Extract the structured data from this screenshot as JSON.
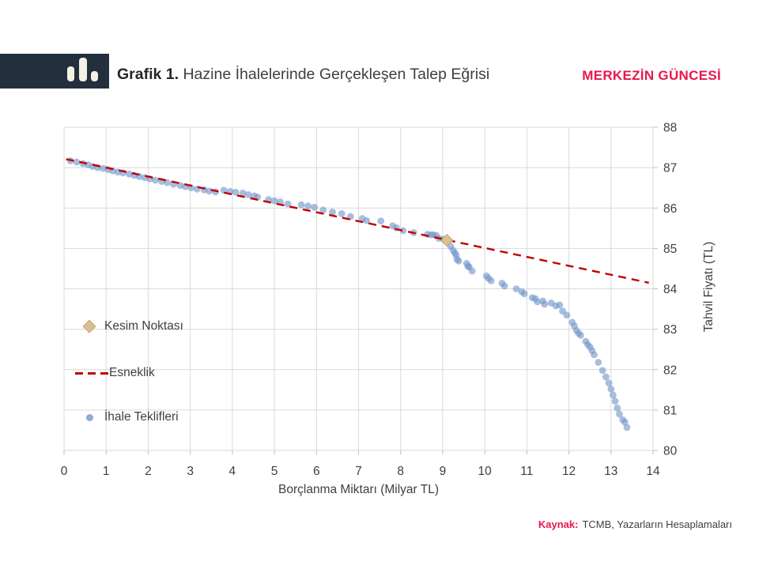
{
  "header": {
    "title_prefix": "Grafik 1.",
    "title_rest": " Hazine İhalelerinde Gerçekleşen Talep Eğrisi",
    "brand": "MERKEZİN GÜNCESİ",
    "logo_icon": "bar-chart-icon"
  },
  "footer": {
    "source_label": "Kaynak:",
    "source_text": "TCMB, Yazarların Hesaplamaları"
  },
  "colors": {
    "navy": "#232F3D",
    "cream": "#F5F0E4",
    "crimson": "#E8174B",
    "scatter_blue": "#7396CC",
    "trend_red": "#C00000",
    "diamond_tan": "#D9BF92",
    "diamond_border": "#C3A878",
    "grid": "#D9D9D9",
    "tick": "#BFBFBF",
    "text": "#404040"
  },
  "chart_data": {
    "type": "scatter",
    "title": "Hazine İhalelerinde Gerçekleşen Talep Eğrisi",
    "xlabel": "Borçlanma Miktarı (Milyar TL)",
    "ylabel": "Tahvil Fiyatı (TL)",
    "xlim": [
      0,
      14
    ],
    "ylim": [
      80,
      88
    ],
    "x_ticks": [
      0,
      1,
      2,
      3,
      4,
      5,
      6,
      7,
      8,
      9,
      10,
      11,
      12,
      13,
      14
    ],
    "y_ticks": [
      80,
      81,
      82,
      83,
      84,
      85,
      86,
      87,
      88
    ],
    "y_axis_side": "right",
    "grid": true,
    "legend_position": "inside-left",
    "legend": [
      {
        "label": "Kesim Noktası",
        "marker": "diamond",
        "color": "#D9BF92"
      },
      {
        "label": "Esneklik",
        "marker": "dashed-line",
        "color": "#C00000"
      },
      {
        "label": "İhale Teklifleri",
        "marker": "dot",
        "color": "#7396CC"
      }
    ],
    "series": [
      {
        "name": "İhale Teklifleri",
        "type": "scatter",
        "color": "#7396CC",
        "opacity": 0.62,
        "marker_radius": 4.4,
        "points": [
          [
            0.15,
            87.17
          ],
          [
            0.3,
            87.14
          ],
          [
            0.45,
            87.1
          ],
          [
            0.57,
            87.07
          ],
          [
            0.68,
            87.03
          ],
          [
            0.8,
            87.0
          ],
          [
            0.93,
            86.98
          ],
          [
            1.05,
            86.95
          ],
          [
            1.16,
            86.92
          ],
          [
            1.28,
            86.89
          ],
          [
            1.4,
            86.87
          ],
          [
            1.55,
            86.84
          ],
          [
            1.67,
            86.81
          ],
          [
            1.79,
            86.78
          ],
          [
            1.92,
            86.75
          ],
          [
            2.04,
            86.72
          ],
          [
            2.17,
            86.69
          ],
          [
            2.32,
            86.66
          ],
          [
            2.45,
            86.63
          ],
          [
            2.6,
            86.59
          ],
          [
            2.76,
            86.56
          ],
          [
            2.88,
            86.53
          ],
          [
            3.02,
            86.5
          ],
          [
            3.16,
            86.47
          ],
          [
            3.33,
            86.45
          ],
          [
            3.45,
            86.42
          ],
          [
            3.6,
            86.4
          ],
          [
            3.8,
            86.44
          ],
          [
            3.95,
            86.41
          ],
          [
            4.08,
            86.39
          ],
          [
            4.25,
            86.37
          ],
          [
            4.38,
            86.33
          ],
          [
            4.52,
            86.3
          ],
          [
            4.6,
            86.27
          ],
          [
            4.86,
            86.21
          ],
          [
            5.0,
            86.18
          ],
          [
            5.14,
            86.15
          ],
          [
            5.32,
            86.1
          ],
          [
            5.64,
            86.08
          ],
          [
            5.8,
            86.05
          ],
          [
            5.95,
            86.02
          ],
          [
            6.16,
            85.95
          ],
          [
            6.38,
            85.9
          ],
          [
            6.6,
            85.86
          ],
          [
            6.81,
            85.79
          ],
          [
            7.09,
            85.74
          ],
          [
            7.19,
            85.69
          ],
          [
            7.53,
            85.68
          ],
          [
            7.81,
            85.56
          ],
          [
            7.9,
            85.51
          ],
          [
            8.06,
            85.44
          ],
          [
            8.31,
            85.39
          ],
          [
            8.64,
            85.35
          ],
          [
            8.72,
            85.34
          ],
          [
            8.78,
            85.34
          ],
          [
            8.85,
            85.32
          ],
          [
            8.91,
            85.25
          ],
          [
            9.02,
            85.23
          ],
          [
            9.19,
            85.05
          ],
          [
            9.25,
            84.95
          ],
          [
            9.29,
            84.89
          ],
          [
            9.32,
            84.83
          ],
          [
            9.34,
            84.73
          ],
          [
            9.38,
            84.69
          ],
          [
            9.57,
            84.63
          ],
          [
            9.6,
            84.56
          ],
          [
            9.63,
            84.54
          ],
          [
            9.7,
            84.44
          ],
          [
            10.04,
            84.32
          ],
          [
            10.09,
            84.26
          ],
          [
            10.15,
            84.2
          ],
          [
            10.41,
            84.14
          ],
          [
            10.47,
            84.07
          ],
          [
            10.75,
            84.0
          ],
          [
            10.88,
            83.93
          ],
          [
            10.94,
            83.88
          ],
          [
            11.13,
            83.78
          ],
          [
            11.2,
            83.76
          ],
          [
            11.25,
            83.68
          ],
          [
            11.38,
            83.7
          ],
          [
            11.42,
            83.62
          ],
          [
            11.58,
            83.65
          ],
          [
            11.69,
            83.58
          ],
          [
            11.78,
            83.6
          ],
          [
            11.85,
            83.45
          ],
          [
            11.95,
            83.35
          ],
          [
            12.08,
            83.17
          ],
          [
            12.13,
            83.08
          ],
          [
            12.18,
            82.97
          ],
          [
            12.23,
            82.9
          ],
          [
            12.28,
            82.85
          ],
          [
            12.4,
            82.7
          ],
          [
            12.45,
            82.62
          ],
          [
            12.5,
            82.56
          ],
          [
            12.55,
            82.47
          ],
          [
            12.6,
            82.37
          ],
          [
            12.7,
            82.18
          ],
          [
            12.8,
            81.98
          ],
          [
            12.88,
            81.82
          ],
          [
            12.95,
            81.67
          ],
          [
            13.0,
            81.52
          ],
          [
            13.05,
            81.37
          ],
          [
            13.1,
            81.22
          ],
          [
            13.15,
            81.05
          ],
          [
            13.2,
            80.9
          ],
          [
            13.28,
            80.76
          ],
          [
            13.33,
            80.7
          ],
          [
            13.38,
            80.57
          ]
        ]
      },
      {
        "name": "Esneklik",
        "type": "line",
        "dashed": true,
        "color": "#C00000",
        "width": 2.4,
        "points": [
          [
            0.05,
            87.21
          ],
          [
            13.9,
            84.15
          ]
        ]
      },
      {
        "name": "Kesim Noktası",
        "type": "point",
        "marker": "diamond",
        "color": "#D9BF92",
        "points": [
          [
            9.1,
            85.2
          ]
        ]
      }
    ]
  }
}
